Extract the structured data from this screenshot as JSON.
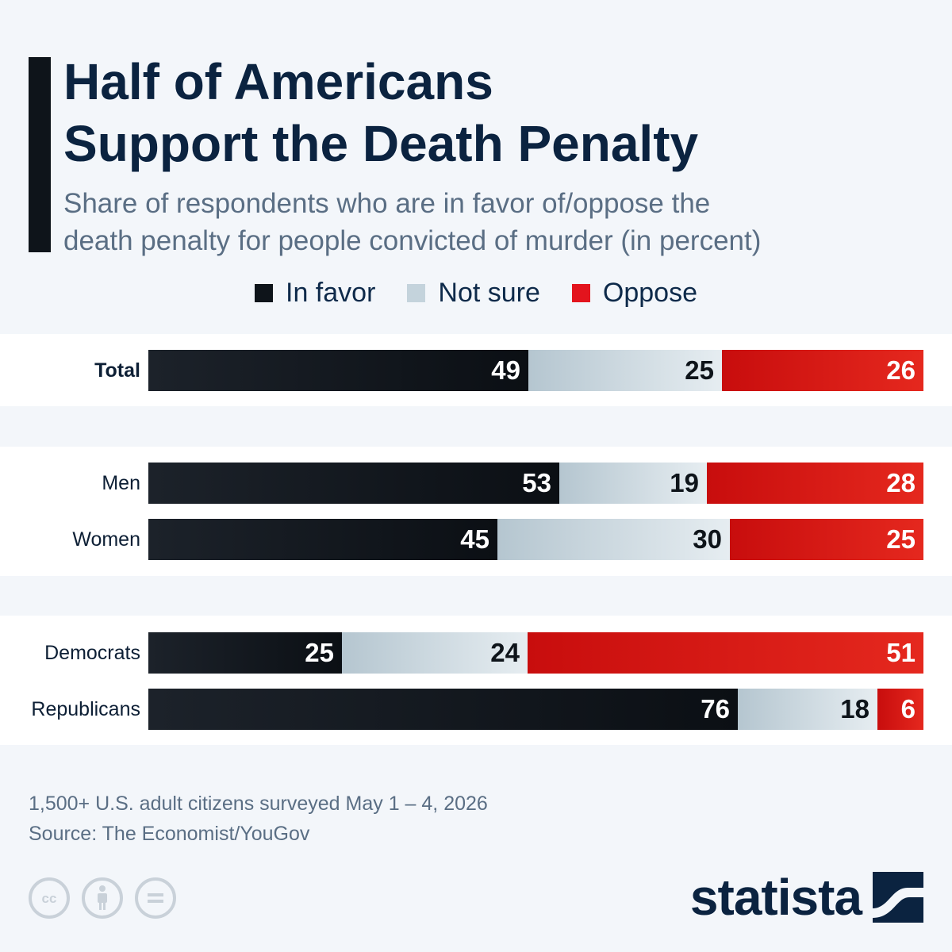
{
  "title_lines": [
    "Half of Americans",
    "Support the Death Penalty"
  ],
  "subtitle_lines": [
    "Share of respondents who are in favor of/oppose the",
    "death penalty for people convicted of murder (in percent)"
  ],
  "legend": [
    {
      "label": "In favor",
      "color": "#0e141a"
    },
    {
      "label": "Not sure",
      "color": "#c4d3dc"
    },
    {
      "label": "Oppose",
      "color": "#e3141d"
    }
  ],
  "chart_data": {
    "type": "bar",
    "orientation": "horizontal",
    "stacked": true,
    "categories": [
      "Total",
      "Men",
      "Women",
      "Democrats",
      "Republicans"
    ],
    "groups": [
      [
        "Total"
      ],
      [
        "Men",
        "Women"
      ],
      [
        "Democrats",
        "Republicans"
      ]
    ],
    "series": [
      {
        "name": "In favor",
        "values": [
          49,
          53,
          45,
          25,
          76
        ],
        "color": "#0e141a"
      },
      {
        "name": "Not sure",
        "values": [
          25,
          19,
          30,
          24,
          18
        ],
        "color": "#c4d3dc"
      },
      {
        "name": "Oppose",
        "values": [
          26,
          28,
          25,
          51,
          6
        ],
        "color": "#e3141d"
      }
    ],
    "xlim": [
      0,
      100
    ],
    "title": "Half of Americans Support the Death Penalty",
    "xlabel": "",
    "ylabel": "",
    "legend_position": "top-center",
    "grid": false
  },
  "notes": {
    "survey": "1,500+ U.S. adult citizens surveyed May 1 – 4, 2026",
    "source": "Source: The Economist/YouGov"
  },
  "license_icons": [
    "cc-icon",
    "attribution-icon",
    "no-derivatives-icon"
  ],
  "brand": "statista"
}
